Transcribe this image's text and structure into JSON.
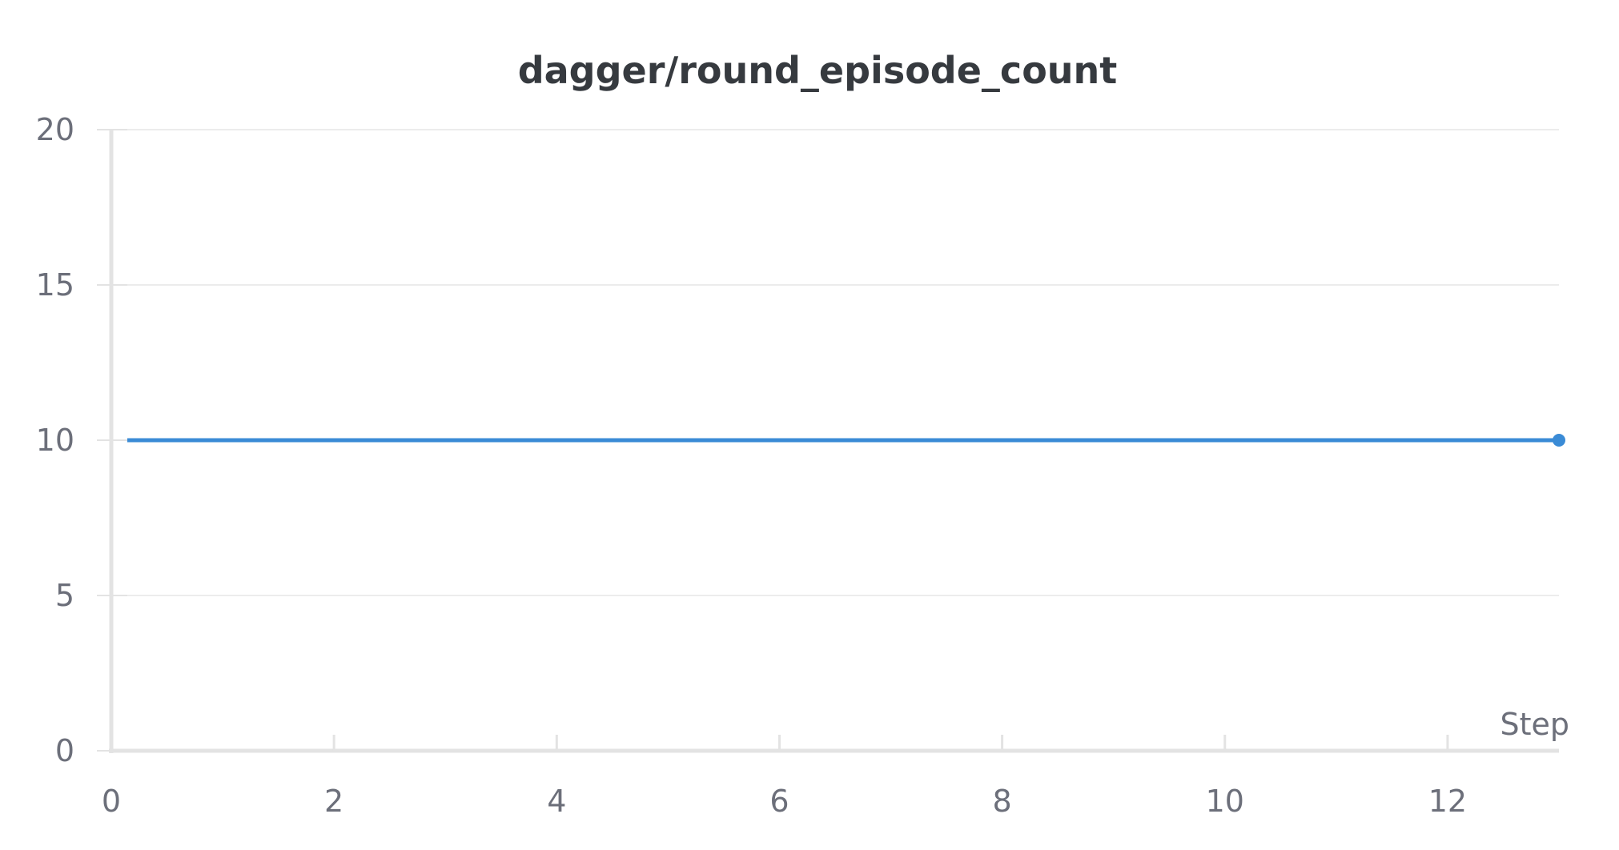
{
  "colors": {
    "series": "#3a8bd6",
    "grid": "#ececec",
    "axis": "#e3e3e3",
    "text": "#6c6f7a",
    "title": "#363a3f"
  },
  "chart_data": {
    "type": "line",
    "title": "dagger/round_episode_count",
    "xlabel": "Step",
    "ylabel": "",
    "xlim": [
      0,
      13
    ],
    "ylim": [
      0,
      20
    ],
    "x_ticks": [
      0,
      2,
      4,
      6,
      8,
      10,
      12
    ],
    "y_ticks": [
      0,
      5,
      10,
      15,
      20
    ],
    "x_tick_labels": [
      "0",
      "2",
      "4",
      "6",
      "8",
      "10",
      "12"
    ],
    "y_tick_labels": [
      "0",
      "5",
      "10",
      "15",
      "20"
    ],
    "grid": true,
    "series": [
      {
        "name": "dagger/round_episode_count",
        "x": [
          0,
          1,
          2,
          3,
          4,
          5,
          6,
          7,
          8,
          9,
          10,
          11,
          12,
          13
        ],
        "y": [
          10,
          10,
          10,
          10,
          10,
          10,
          10,
          10,
          10,
          10,
          10,
          10,
          10,
          10
        ],
        "end_marker": true
      }
    ]
  }
}
